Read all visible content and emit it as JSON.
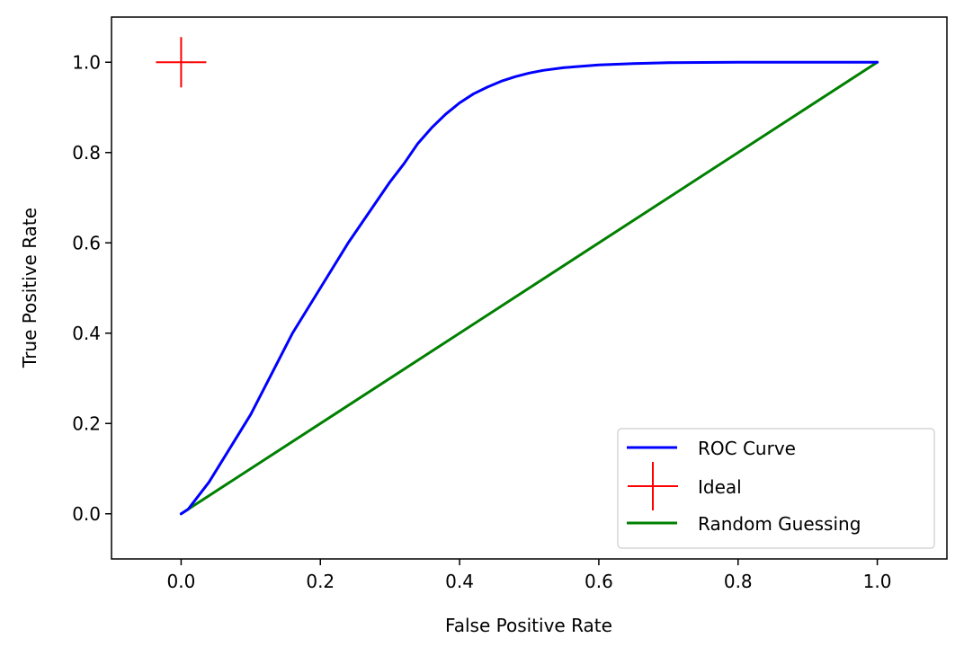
{
  "chart_data": {
    "type": "line",
    "title": "",
    "xlabel": "False Positive Rate",
    "ylabel": "True Positive Rate",
    "xlim": [
      -0.1,
      1.1
    ],
    "ylim": [
      -0.1,
      1.1
    ],
    "xticks": [
      0.0,
      0.2,
      0.4,
      0.6,
      0.8,
      1.0
    ],
    "xtick_labels": [
      "0.0",
      "0.2",
      "0.4",
      "0.6",
      "0.8",
      "1.0"
    ],
    "yticks": [
      0.0,
      0.2,
      0.4,
      0.6,
      0.8,
      1.0
    ],
    "ytick_labels": [
      "0.0",
      "0.2",
      "0.4",
      "0.6",
      "0.8",
      "1.0"
    ],
    "grid": false,
    "legend_position": "lower-right",
    "series": [
      {
        "name": "ROC Curve",
        "kind": "line",
        "color": "#0000ff",
        "x": [
          0.0,
          0.01,
          0.02,
          0.04,
          0.06,
          0.08,
          0.1,
          0.12,
          0.14,
          0.16,
          0.18,
          0.2,
          0.22,
          0.24,
          0.26,
          0.28,
          0.3,
          0.32,
          0.34,
          0.36,
          0.38,
          0.4,
          0.42,
          0.44,
          0.46,
          0.48,
          0.5,
          0.52,
          0.55,
          0.6,
          0.65,
          0.7,
          0.8,
          0.9,
          1.0
        ],
        "y": [
          0.0,
          0.01,
          0.03,
          0.07,
          0.12,
          0.17,
          0.22,
          0.28,
          0.34,
          0.4,
          0.45,
          0.5,
          0.55,
          0.6,
          0.645,
          0.69,
          0.735,
          0.775,
          0.82,
          0.855,
          0.885,
          0.91,
          0.93,
          0.945,
          0.958,
          0.968,
          0.976,
          0.982,
          0.988,
          0.994,
          0.997,
          0.999,
          1.0,
          1.0,
          1.0
        ]
      },
      {
        "name": "Ideal",
        "kind": "marker",
        "marker": "plus",
        "color": "#ff0000",
        "x": [
          0.0
        ],
        "y": [
          1.0
        ]
      },
      {
        "name": "Random Guessing",
        "kind": "line",
        "color": "#008000",
        "x": [
          0.0,
          1.0
        ],
        "y": [
          0.0,
          1.0
        ]
      }
    ]
  }
}
